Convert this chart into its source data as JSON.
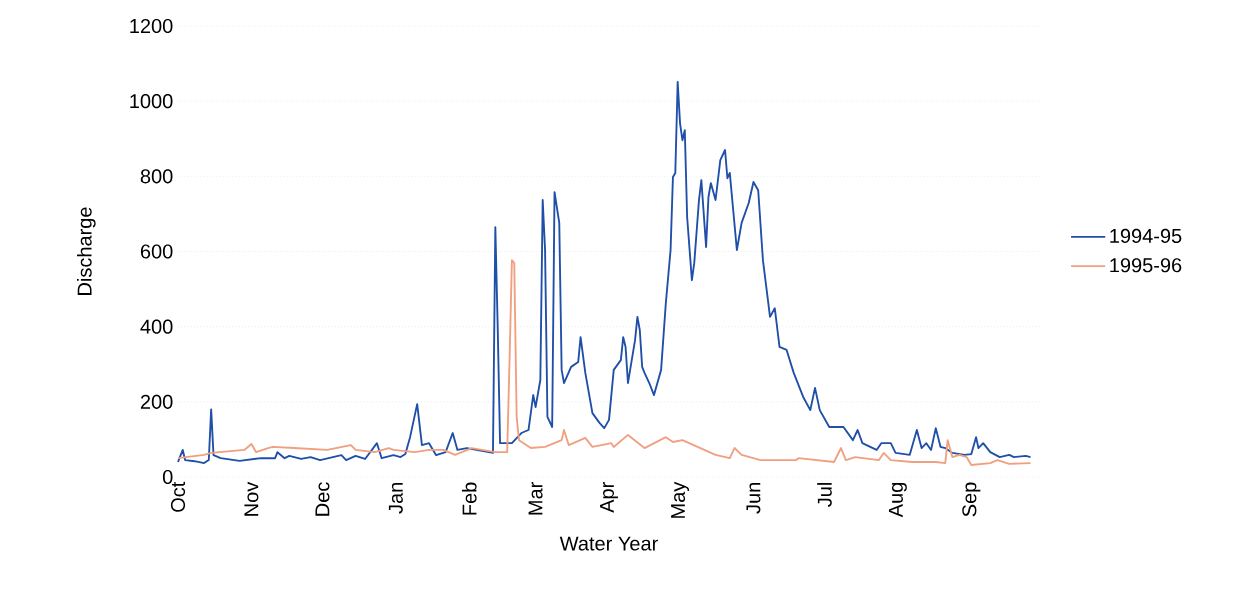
{
  "chart_data": {
    "type": "line",
    "xlabel": "Water Year",
    "ylabel": "Discharge",
    "xlim": [
      "1994-10-01",
      "1995-09-30"
    ],
    "ylim": [
      0,
      1200
    ],
    "xticks": [
      {
        "value": "1994-10-01",
        "label": "Oct"
      },
      {
        "value": "1994-11-01",
        "label": "Nov"
      },
      {
        "value": "1994-12-01",
        "label": "Dec"
      },
      {
        "value": "1995-01-01",
        "label": "Jan"
      },
      {
        "value": "1995-02-01",
        "label": "Feb"
      },
      {
        "value": "1995-03-01",
        "label": "Mar"
      },
      {
        "value": "1995-04-01",
        "label": "Apr"
      },
      {
        "value": "1995-05-01",
        "label": "May"
      },
      {
        "value": "1995-06-01",
        "label": "Jun"
      },
      {
        "value": "1995-07-01",
        "label": "Jul"
      },
      {
        "value": "1995-08-01",
        "label": "Aug"
      },
      {
        "value": "1995-09-01",
        "label": "Sep"
      }
    ],
    "yticks": [
      0,
      200,
      400,
      600,
      800,
      1000,
      1200
    ],
    "grid": "y",
    "legend": "right",
    "marker": "none",
    "line_style": "solid",
    "series": [
      {
        "name": "1994-95",
        "color": "#1f4fa8",
        "x": [
          "1994-10-01",
          "1994-10-03",
          "1994-10-04",
          "1994-10-08",
          "1994-10-12",
          "1994-10-14",
          "1994-10-15",
          "1994-10-16",
          "1994-10-19",
          "1994-10-27",
          "1994-11-05",
          "1994-11-11",
          "1994-11-12",
          "1994-11-15",
          "1994-11-17",
          "1994-11-22",
          "1994-11-26",
          "1994-11-30",
          "1994-12-09",
          "1994-12-11",
          "1994-12-15",
          "1994-12-19",
          "1994-12-24",
          "1994-12-26",
          "1994-12-31",
          "1995-01-03",
          "1995-01-05",
          "1995-01-07",
          "1995-01-10",
          "1995-01-12",
          "1995-01-15",
          "1995-01-18",
          "1995-01-22",
          "1995-01-25",
          "1995-01-27",
          "1995-01-31",
          "1995-02-04",
          "1995-02-11",
          "1995-02-12",
          "1995-02-13",
          "1995-02-14",
          "1995-02-19",
          "1995-02-23",
          "1995-02-26",
          "1995-02-28",
          "1995-03-01",
          "1995-03-03",
          "1995-03-04",
          "1995-03-05",
          "1995-03-06",
          "1995-03-08",
          "1995-03-09",
          "1995-03-11",
          "1995-03-12",
          "1995-03-13",
          "1995-03-16",
          "1995-03-19",
          "1995-03-20",
          "1995-03-22",
          "1995-03-25",
          "1995-03-28",
          "1995-03-30",
          "1995-04-01",
          "1995-04-03",
          "1995-04-06",
          "1995-04-07",
          "1995-04-08",
          "1995-04-09",
          "1995-04-12",
          "1995-04-13",
          "1995-04-14",
          "1995-04-15",
          "1995-04-16",
          "1995-04-18",
          "1995-04-20",
          "1995-04-23",
          "1995-04-25",
          "1995-04-27",
          "1995-04-28",
          "1995-04-29",
          "1995-04-30",
          "1995-05-01",
          "1995-05-02",
          "1995-05-03",
          "1995-05-04",
          "1995-05-06",
          "1995-05-07",
          "1995-05-09",
          "1995-05-10",
          "1995-05-12",
          "1995-05-13",
          "1995-05-14",
          "1995-05-16",
          "1995-05-18",
          "1995-05-20",
          "1995-05-21",
          "1995-05-22",
          "1995-05-25",
          "1995-05-27",
          "1995-05-30",
          "1995-06-01",
          "1995-06-03",
          "1995-06-05",
          "1995-06-08",
          "1995-06-10",
          "1995-06-12",
          "1995-06-15",
          "1995-06-18",
          "1995-06-22",
          "1995-06-25",
          "1995-06-27",
          "1995-06-29",
          "1995-07-03",
          "1995-07-09",
          "1995-07-13",
          "1995-07-15",
          "1995-07-17",
          "1995-07-23",
          "1995-07-25",
          "1995-07-29",
          "1995-07-31",
          "1995-08-06",
          "1995-08-09",
          "1995-08-11",
          "1995-08-13",
          "1995-08-15",
          "1995-08-17",
          "1995-08-19",
          "1995-08-21",
          "1995-08-24",
          "1995-08-29",
          "1995-09-01",
          "1995-09-03",
          "1995-09-04",
          "1995-09-06",
          "1995-09-09",
          "1995-09-13",
          "1995-09-17",
          "1995-09-19",
          "1995-09-24",
          "1995-09-26"
        ],
        "values": [
          40,
          72,
          45,
          42,
          37,
          45,
          180,
          58,
          50,
          43,
          50,
          50,
          66,
          50,
          56,
          48,
          53,
          45,
          58,
          45,
          56,
          48,
          90,
          50,
          58,
          53,
          61,
          106,
          194,
          85,
          90,
          58,
          66,
          117,
          72,
          77,
          72,
          64,
          665,
          400,
          90,
          90,
          117,
          125,
          218,
          186,
          258,
          737,
          604,
          160,
          133,
          758,
          676,
          285,
          250,
          293,
          306,
          372,
          277,
          170,
          144,
          130,
          152,
          285,
          311,
          372,
          346,
          250,
          364,
          426,
          391,
          293,
          277,
          250,
          218,
          285,
          463,
          604,
          798,
          809,
          1051,
          941,
          896,
          923,
          691,
          524,
          569,
          737,
          790,
          612,
          745,
          782,
          737,
          843,
          870,
          795,
          809,
          604,
          676,
          729,
          785,
          763,
          577,
          426,
          449,
          346,
          338,
          277,
          213,
          178,
          237,
          178,
          133,
          133,
          98,
          125,
          90,
          72,
          90,
          90,
          64,
          59,
          125,
          77,
          90,
          72,
          130,
          80,
          77,
          64,
          59,
          61,
          106,
          77,
          90,
          66,
          53,
          59,
          53,
          56,
          53
        ]
      },
      {
        "name": "1995-96",
        "color": "#f0a080",
        "x": [
          "1994-10-01",
          "1994-10-12",
          "1994-10-15",
          "1994-10-29",
          "1994-11-01",
          "1994-11-03",
          "1994-11-08",
          "1994-11-10",
          "1994-11-19",
          "1994-12-03",
          "1994-12-13",
          "1994-12-15",
          "1994-12-23",
          "1994-12-29",
          "1994-12-31",
          "1995-01-09",
          "1995-01-15",
          "1995-01-21",
          "1995-01-26",
          "1995-02-02",
          "1995-02-12",
          "1995-02-17",
          "1995-02-18",
          "1995-02-19",
          "1995-02-20",
          "1995-02-21",
          "1995-02-22",
          "1995-02-27",
          "1995-03-05",
          "1995-03-12",
          "1995-03-13",
          "1995-03-15",
          "1995-03-22",
          "1995-03-25",
          "1995-04-02",
          "1995-04-03",
          "1995-04-09",
          "1995-04-16",
          "1995-04-25",
          "1995-04-28",
          "1995-05-02",
          "1995-05-16",
          "1995-05-22",
          "1995-05-24",
          "1995-05-27",
          "1995-06-04",
          "1995-06-13",
          "1995-06-19",
          "1995-06-20",
          "1995-07-05",
          "1995-07-08",
          "1995-07-10",
          "1995-07-14",
          "1995-07-24",
          "1995-07-26",
          "1995-07-29",
          "1995-08-07",
          "1995-08-17",
          "1995-08-21",
          "1995-08-22",
          "1995-08-24",
          "1995-08-27",
          "1995-08-30",
          "1995-09-01",
          "1995-09-09",
          "1995-09-12",
          "1995-09-17",
          "1995-09-26"
        ],
        "values": [
          50,
          59,
          64,
          72,
          88,
          66,
          77,
          80,
          77,
          72,
          85,
          72,
          66,
          77,
          72,
          66,
          72,
          72,
          59,
          77,
          66,
          66,
          311,
          577,
          569,
          160,
          98,
          77,
          80,
          98,
          125,
          85,
          104,
          80,
          90,
          80,
          112,
          77,
          106,
          93,
          98,
          59,
          50,
          77,
          59,
          45,
          45,
          45,
          50,
          40,
          77,
          45,
          53,
          45,
          64,
          45,
          40,
          40,
          37,
          98,
          53,
          59,
          53,
          32,
          37,
          45,
          35,
          37
        ]
      }
    ]
  }
}
